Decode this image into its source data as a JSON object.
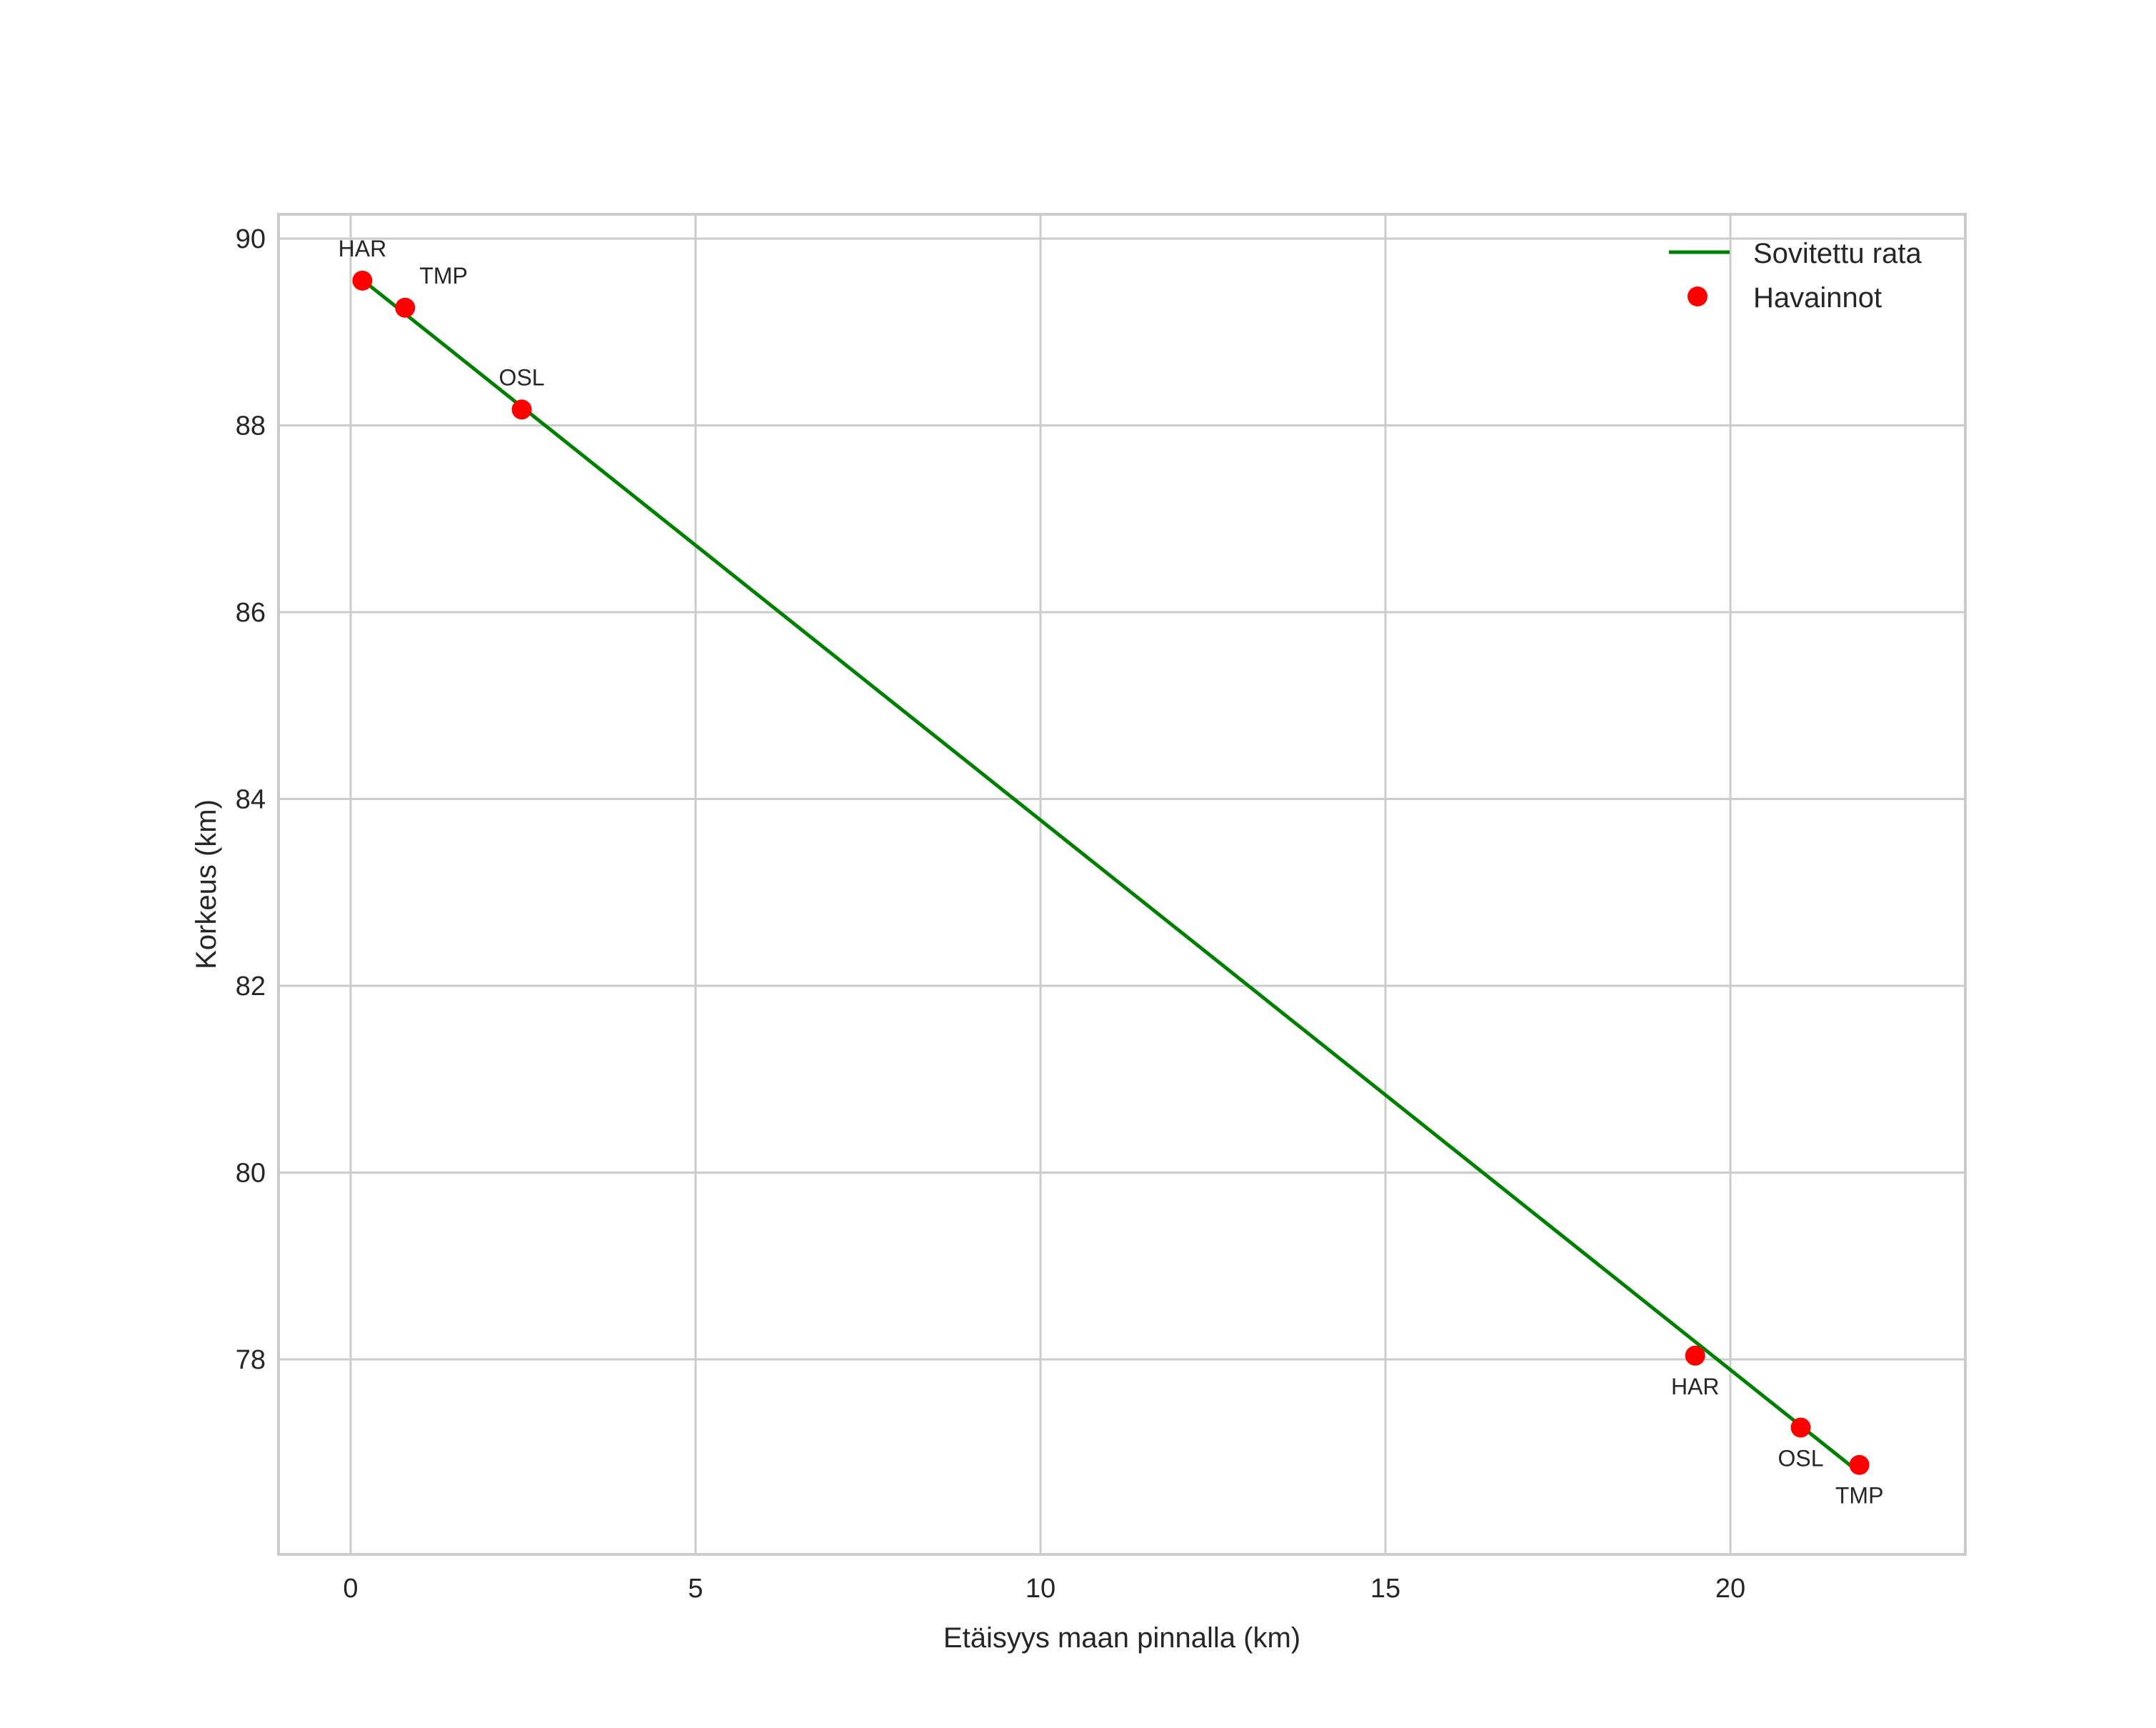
{
  "chart_data": {
    "type": "line+scatter",
    "title": "",
    "xlabel": "Etäisyys maan pinnalla (km)",
    "ylabel": "Korkeus (km)",
    "xlim": [
      -1.1,
      23.0
    ],
    "ylim": [
      76.3,
      90.3
    ],
    "xticks": [
      0,
      5,
      10,
      15,
      20
    ],
    "yticks": [
      78,
      80,
      82,
      84,
      86,
      88,
      90
    ],
    "grid": true,
    "legend_position": "upper right",
    "series": [
      {
        "name": "Sovitettu rata",
        "kind": "line",
        "color": "#008000",
        "x": [
          0.1,
          21.85
        ],
        "y": [
          89.6,
          76.8
        ]
      },
      {
        "name": "Havainnot",
        "kind": "scatter",
        "color": "#ff0000",
        "points": [
          {
            "label": "HAR",
            "x": 0.17,
            "y": 89.55,
            "label_pos": "above"
          },
          {
            "label": "TMP",
            "x": 0.79,
            "y": 89.26,
            "label_pos": "above-right"
          },
          {
            "label": "OSL",
            "x": 2.48,
            "y": 88.17,
            "label_pos": "above"
          },
          {
            "label": "HAR",
            "x": 19.49,
            "y": 78.04,
            "label_pos": "below"
          },
          {
            "label": "OSL",
            "x": 21.02,
            "y": 77.27,
            "label_pos": "below"
          },
          {
            "label": "TMP",
            "x": 21.87,
            "y": 76.87,
            "label_pos": "below"
          }
        ]
      }
    ]
  },
  "legend": {
    "line_label": "Sovitettu rata",
    "points_label": "Havainnot"
  },
  "colors": {
    "line": "#008000",
    "points": "#ff0000",
    "grid": "#cccccc",
    "text": "#262626"
  }
}
